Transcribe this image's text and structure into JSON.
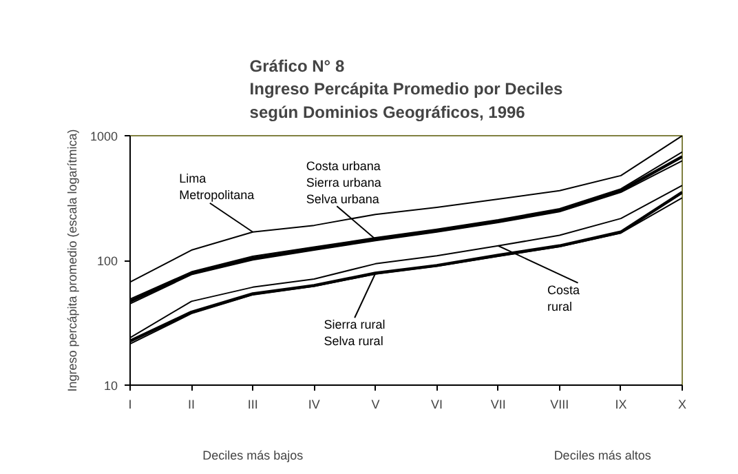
{
  "chart_data": {
    "type": "line",
    "title": "Gráfico N° 8\nIngreso Percápita Promedio por Deciles\nsegún Dominios Geográficos, 1996",
    "ylabel": "Ingreso percápita promedio (escala logarítmica)",
    "categories": [
      "I",
      "II",
      "III",
      "IV",
      "V",
      "VI",
      "VII",
      "VIII",
      "IX",
      "X"
    ],
    "series": [
      {
        "color": "#000000",
        "values": [
          67,
          121,
          169,
          191,
          234,
          266,
          310,
          363,
          479,
          1000
        ]
      },
      {
        "color": "#000000",
        "values": [
          49,
          81,
          108,
          128,
          152,
          178,
          212,
          260,
          375,
          740
        ]
      },
      {
        "color": "#000000",
        "values": [
          47,
          79,
          104,
          124,
          148,
          173,
          206,
          253,
          363,
          680
        ]
      },
      {
        "color": "#000000",
        "values": [
          45,
          77,
          101,
          121,
          144,
          169,
          201,
          246,
          352,
          630
        ]
      },
      {
        "color": "#000000",
        "values": [
          24,
          47,
          61,
          71,
          94,
          109,
          131,
          159,
          217,
          400
        ]
      },
      {
        "color": "#000000",
        "values": [
          22.6,
          38.5,
          54,
          63,
          79,
          91,
          110,
          131,
          169,
          352
        ]
      },
      {
        "color": "#000000",
        "values": [
          21.4,
          37.5,
          53,
          62,
          78,
          90,
          108,
          129,
          166,
          318
        ]
      }
    ],
    "log": "y",
    "ylim": [
      10,
      1000
    ],
    "yticks": [
      10,
      100,
      1000
    ],
    "grid": false,
    "annotations": [
      {
        "text": "Lima\nMetropolitana",
        "x": "III",
        "y": 169
      },
      {
        "text": "Costa urbana\nSierra urbana\nSelva urbana",
        "x": "V",
        "y": 148
      },
      {
        "text": "Sierra rural\nSelva rural",
        "x": "V",
        "y": 79
      },
      {
        "text": "Costa\nrural",
        "x": "VII",
        "y": 131
      },
      "Deciles más bajos",
      "Deciles más altos"
    ]
  }
}
